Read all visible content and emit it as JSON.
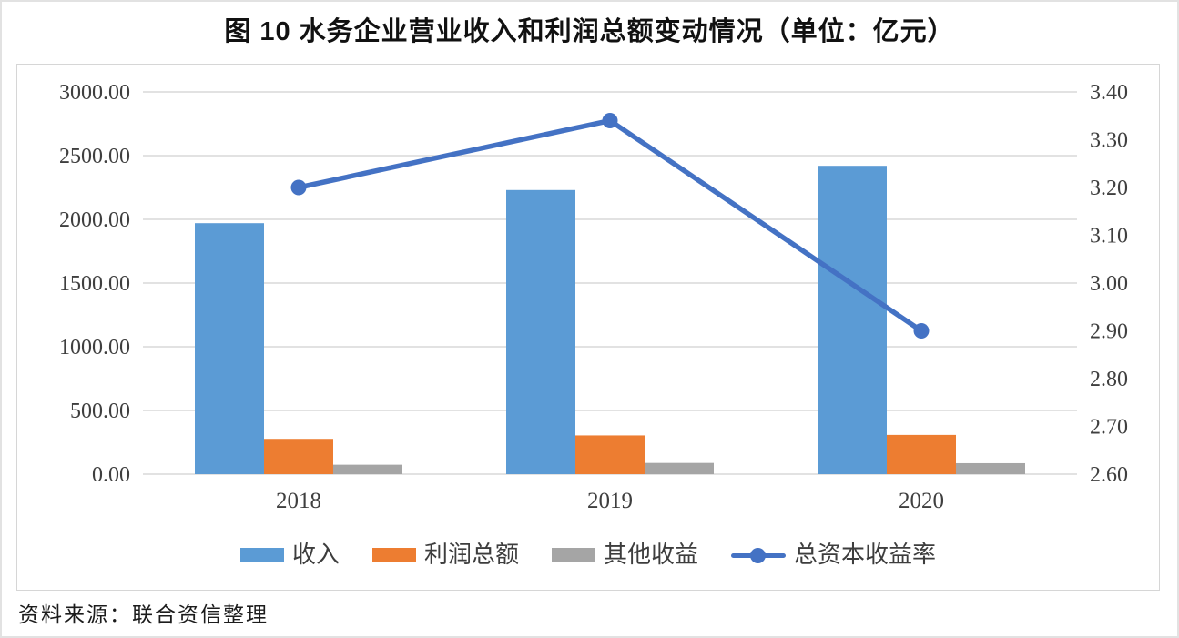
{
  "title": "图 10 水务企业营业收入和利润总额变动情况（单位：亿元）",
  "source_note": "资料来源：联合资信整理",
  "colors": {
    "gridline": "#d9d9d9",
    "axis_text": "#3f3f3f",
    "chart_border": "#d6d6d6"
  },
  "chart_data": {
    "type": "bar",
    "subtype": "grouped bars with secondary-axis line",
    "title": "图 10 水务企业营业收入和利润总额变动情况（单位：亿元）",
    "categories": [
      "2018",
      "2019",
      "2020"
    ],
    "bar_series": [
      {
        "name": "收入",
        "color": "#5B9BD5",
        "axis": "left",
        "values": [
          1970,
          2230,
          2420
        ]
      },
      {
        "name": "利润总额",
        "color": "#ED7D31",
        "axis": "left",
        "values": [
          277,
          304,
          308
        ]
      },
      {
        "name": "其他收益",
        "color": "#A5A5A5",
        "axis": "left",
        "values": [
          74,
          88,
          86
        ]
      }
    ],
    "line_series": [
      {
        "name": "总资本收益率",
        "color": "#4472C4",
        "axis": "right",
        "values": [
          3.2,
          3.34,
          2.9
        ]
      }
    ],
    "left_axis": {
      "min": 0,
      "max": 3000,
      "tick_labels": [
        "0.00",
        "500.00",
        "1000.00",
        "1500.00",
        "2000.00",
        "2500.00",
        "3000.00"
      ]
    },
    "right_axis": {
      "min": 2.6,
      "max": 3.4,
      "tick_labels": [
        "2.60",
        "2.70",
        "2.80",
        "2.90",
        "3.00",
        "3.10",
        "3.20",
        "3.30",
        "3.40"
      ]
    },
    "grid": true,
    "legend_position": "bottom"
  }
}
